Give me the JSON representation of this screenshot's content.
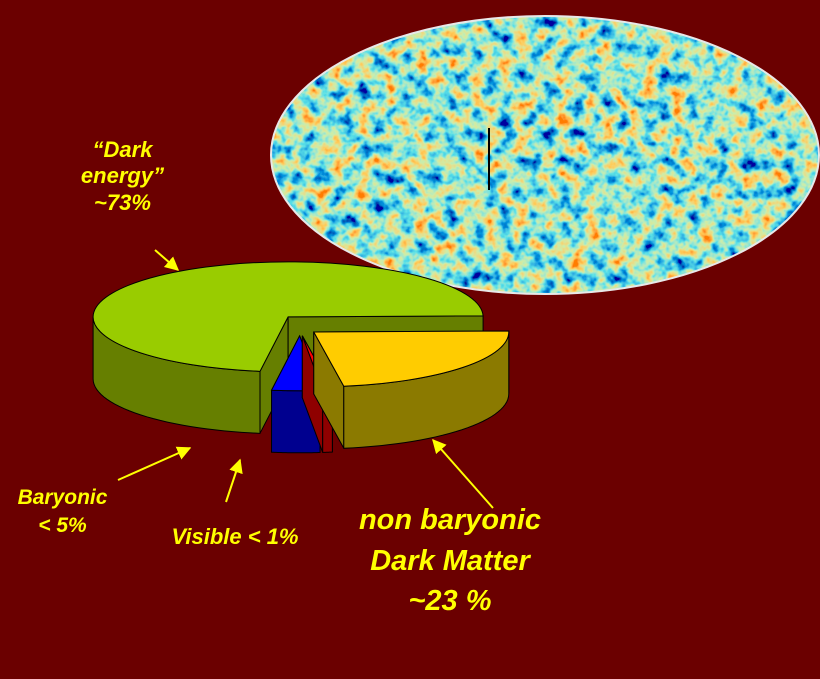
{
  "chart_data": {
    "type": "pie",
    "categories": [
      "“Dark energy”",
      "Baryonic",
      "Visible",
      "non baryonic Dark Matter"
    ],
    "values": [
      73,
      4,
      0.8,
      23
    ],
    "value_labels": [
      "~73%",
      "< 5%",
      "< 1%",
      "~23 %"
    ],
    "colors": [
      "#99cc00",
      "#0000ff",
      "#ff0000",
      "#ffcc00"
    ],
    "side_colors": [
      "#667f00",
      "#00008f",
      "#8f0000",
      "#8b7a00"
    ]
  }
}
